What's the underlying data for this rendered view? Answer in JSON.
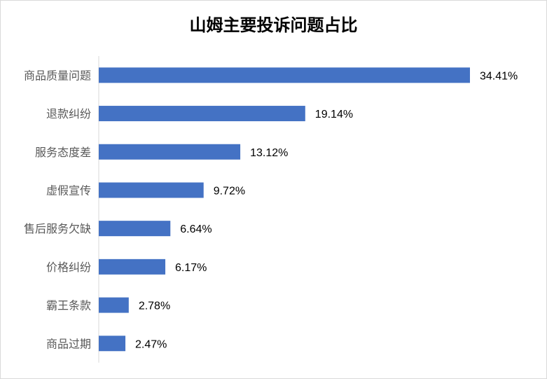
{
  "chart_data": {
    "type": "bar",
    "orientation": "horizontal",
    "title": "山姆主要投诉问题占比",
    "categories": [
      "商品质量问题",
      "退款纠纷",
      "服务态度差",
      "虚假宣传",
      "售后服务欠缺",
      "价格纠纷",
      "霸王条款",
      "商品过期"
    ],
    "values": [
      34.41,
      19.14,
      13.12,
      9.72,
      6.64,
      6.17,
      2.78,
      2.47
    ],
    "data_labels": [
      "34.41%",
      "19.14%",
      "13.12%",
      "9.72%",
      "6.64%",
      "6.17%",
      "2.78%",
      "2.47%"
    ],
    "xlim": [
      0,
      34.41
    ],
    "grid": false,
    "legend": "none",
    "bar_color": "#4472C4",
    "axis_color": "#d9d9d9"
  }
}
